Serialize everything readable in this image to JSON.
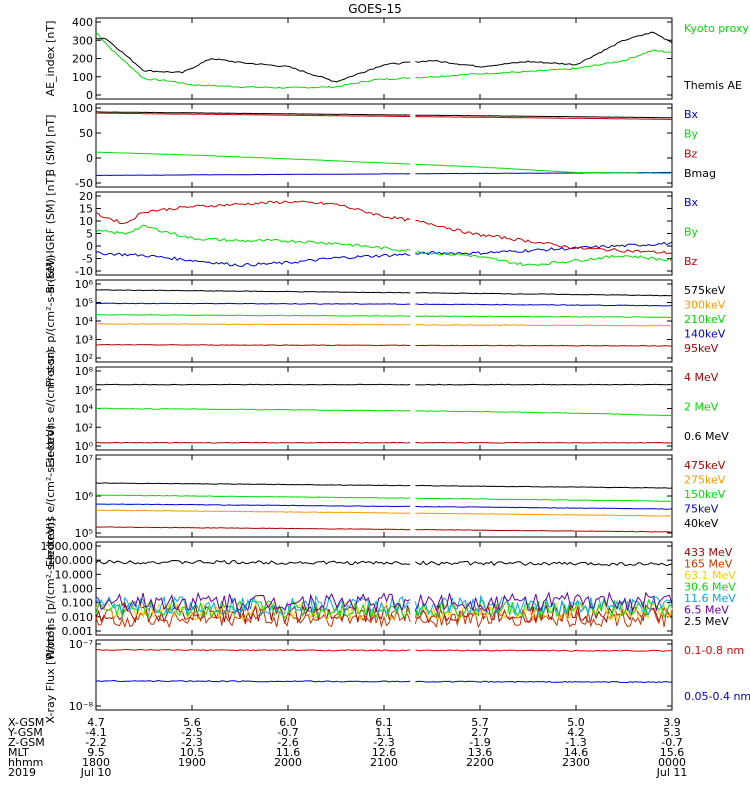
{
  "title": "GOES-15",
  "x_axis": {
    "hhmm_ticks": [
      "1800",
      "1900",
      "2000",
      "2100",
      "2200",
      "2300",
      "0000"
    ],
    "rows": [
      {
        "label": "X-GSM",
        "values": [
          "4.7",
          "5.6",
          "6.0",
          "6.1",
          "5.7",
          "5.0",
          "3.9"
        ]
      },
      {
        "label": "Y-GSM",
        "values": [
          "-4.1",
          "-2.5",
          "-0.7",
          "1.1",
          "2.7",
          "4.2",
          "5.3"
        ]
      },
      {
        "label": "Z-GSM",
        "values": [
          "-2.2",
          "-2.3",
          "-2.6",
          "-2.3",
          "-1.9",
          "-1.3",
          "-0.7"
        ]
      },
      {
        "label": "MLT",
        "values": [
          "9.5",
          "10.5",
          "11.6",
          "12.6",
          "13.6",
          "14.6",
          "15.6"
        ]
      },
      {
        "label": "hhmm",
        "values": [
          "1800",
          "1900",
          "2000",
          "2100",
          "2200",
          "2300",
          "0000"
        ]
      }
    ],
    "year_label": "2019",
    "start_date": "Jul 10",
    "end_date": "Jul 11"
  },
  "chart_data": [
    {
      "type": "line",
      "panel": "ae",
      "ylabel": "AE_index [nT]",
      "yticks": [
        "400",
        "300",
        "200",
        "100",
        "0"
      ],
      "ylim": [
        0,
        400
      ],
      "series": [
        {
          "name": "Kyoto proxy AE",
          "color": "#00dd00",
          "x": [
            0,
            0.15,
            0.5,
            0.75,
            1.0,
            1.5,
            2.0,
            2.5,
            2.9,
            3.5,
            4.0,
            4.5,
            5.0,
            5.5,
            5.8,
            6.0
          ],
          "y": [
            330,
            250,
            100,
            90,
            70,
            60,
            55,
            60,
            95,
            110,
            125,
            135,
            150,
            190,
            240,
            230
          ]
        },
        {
          "name": "Themis AE",
          "color": "#000000",
          "x": [
            0,
            0.1,
            0.5,
            0.9,
            1.2,
            1.5,
            2.0,
            2.5,
            3.0,
            3.5,
            4.0,
            4.5,
            5.0,
            5.5,
            5.8,
            6.0
          ],
          "y": [
            300,
            300,
            140,
            130,
            200,
            180,
            160,
            85,
            170,
            190,
            160,
            185,
            170,
            290,
            330,
            280
          ]
        }
      ]
    },
    {
      "type": "line",
      "panel": "bsm",
      "ylabel": "B (SM) [nT]",
      "yticks": [
        "100",
        "50",
        "0",
        "-50"
      ],
      "ylim": [
        -60,
        140
      ],
      "series": [
        {
          "name": "Bx",
          "color": "#0000cc",
          "x": [
            0,
            6
          ],
          "y": [
            -32,
            -25
          ]
        },
        {
          "name": "By",
          "color": "#00dd00",
          "x": [
            0,
            1,
            2,
            3,
            4,
            5,
            6
          ],
          "y": [
            24,
            17,
            8,
            -2,
            -12,
            -25,
            -27
          ]
        },
        {
          "name": "Bz",
          "color": "#cc0000",
          "x": [
            0,
            6
          ],
          "y": [
            118,
            103
          ]
        },
        {
          "name": "Bmag",
          "color": "#000000",
          "x": [
            0,
            6
          ],
          "y": [
            121,
            107
          ]
        }
      ]
    },
    {
      "type": "line",
      "panel": "bigrf",
      "ylabel": "B (SM)-IGRF (SM) [nT]",
      "yticks": [
        "20",
        "15",
        "10",
        "5",
        "0",
        "-5",
        "-10"
      ],
      "ylim": [
        -12,
        22
      ],
      "series": [
        {
          "name": "Bx",
          "color": "#0000cc",
          "x": [
            0,
            0.5,
            1,
            1.5,
            2,
            2.5,
            3,
            3.5,
            4,
            4.5,
            5,
            5.5,
            6
          ],
          "y": [
            -3,
            -4,
            -6,
            -8,
            -7,
            -5,
            -4,
            -3,
            -3,
            -2,
            -1,
            0,
            1
          ]
        },
        {
          "name": "By",
          "color": "#00dd00",
          "x": [
            0,
            0.3,
            0.5,
            1,
            1.5,
            2,
            2.5,
            3,
            3.5,
            3.9,
            4.5,
            5,
            5.5,
            6
          ],
          "y": [
            6,
            5,
            8,
            3,
            2,
            2,
            1,
            -1,
            -3,
            -4,
            -8,
            -6,
            -4,
            -6
          ]
        },
        {
          "name": "Bz",
          "color": "#cc0000",
          "x": [
            0,
            0.3,
            0.5,
            1,
            1.5,
            2,
            2.5,
            3,
            3.5,
            3.9,
            4.5,
            5,
            5.5,
            6
          ],
          "y": [
            13,
            9,
            14,
            16,
            17,
            18,
            17,
            12,
            9,
            5,
            2,
            -1,
            -2,
            -3
          ]
        }
      ]
    },
    {
      "type": "line",
      "panel": "protons",
      "yscale": "log",
      "ylabel": "Protons p/(cm²-s-sr-keV)",
      "yticks": [
        "10⁶",
        "10⁵",
        "10⁴",
        "10³",
        "10²"
      ],
      "ylim": [
        50,
        1000000
      ],
      "series": [
        {
          "name": "575keV",
          "color": "#000000",
          "x": [
            0,
            3,
            6
          ],
          "y": [
            300000,
            220000,
            150000
          ]
        },
        {
          "name": "300keV",
          "color": "#ff9900",
          "x": [
            0,
            6
          ],
          "y": [
            5000,
            4000
          ]
        },
        {
          "name": "210keV",
          "color": "#00dd00",
          "x": [
            0,
            6
          ],
          "y": [
            15000,
            11000
          ]
        },
        {
          "name": "140keV",
          "color": "#0000cc",
          "x": [
            0,
            3,
            6
          ],
          "y": [
            60000,
            55000,
            45000
          ]
        },
        {
          "name": "95keV",
          "color": "#aa0000",
          "x": [
            0,
            6
          ],
          "y": [
            400,
            350
          ]
        }
      ]
    },
    {
      "type": "line",
      "panel": "electrons_mev",
      "yscale": "log",
      "ylabel": "Electrons e/(cm²-s-sr)",
      "yticks": [
        "10⁸",
        "10⁶",
        "10⁴",
        "10²",
        "10⁰"
      ],
      "ylim": [
        1,
        100000000
      ],
      "series": [
        {
          "name": "4 MeV",
          "color": "#aa0000",
          "x": [
            0,
            6
          ],
          "y": [
            5,
            5
          ]
        },
        {
          "name": "2 MeV",
          "color": "#00dd00",
          "x": [
            0,
            4,
            6
          ],
          "y": [
            10000,
            5000,
            2000
          ]
        },
        {
          "name": "0.6 MeV",
          "color": "#000000",
          "x": [
            0,
            6
          ],
          "y": [
            2000000,
            2000000
          ]
        }
      ]
    },
    {
      "type": "line",
      "panel": "electrons_kev",
      "yscale": "log",
      "ylabel": "Electrons e/(cm²-s-sr-keV)",
      "yticks": [
        "10⁷",
        "10⁶",
        "10⁵"
      ],
      "ylim": [
        90000,
        10000000
      ],
      "series": [
        {
          "name": "475keV",
          "color": "#aa0000",
          "x": [
            0,
            6
          ],
          "y": [
            160000,
            120000
          ]
        },
        {
          "name": "275keV",
          "color": "#ff9900",
          "x": [
            0,
            6
          ],
          "y": [
            420000,
            300000
          ]
        },
        {
          "name": "150keV",
          "color": "#00dd00",
          "x": [
            0,
            6
          ],
          "y": [
            1000000,
            700000
          ]
        },
        {
          "name": "75keV",
          "color": "#0000cc",
          "x": [
            0,
            6
          ],
          "y": [
            600000,
            450000
          ]
        },
        {
          "name": "40keV",
          "color": "#000000",
          "x": [
            0,
            6
          ],
          "y": [
            2000000,
            1500000
          ]
        }
      ]
    },
    {
      "type": "line",
      "panel": "protons_mev",
      "yscale": "log",
      "ylabel": "Protons [p/(cm²-s-sr-keV)]",
      "yticks": [
        "1000.000",
        "100.000",
        "10.000",
        "1.000",
        "0.100",
        "0.010",
        "0.001"
      ],
      "ylim": [
        0.0008,
        1000
      ],
      "series": [
        {
          "name": "433 MeV",
          "color": "#aa0000",
          "x": [
            0,
            6
          ],
          "y": [
            0.02,
            0.02
          ]
        },
        {
          "name": "165 MeV",
          "color": "#cc3300",
          "x": [
            0,
            6
          ],
          "y": [
            0.01,
            0.01
          ]
        },
        {
          "name": "63.1 MeV",
          "color": "#ffcc00",
          "x": [
            0,
            6
          ],
          "y": [
            0.03,
            0.03
          ]
        },
        {
          "name": "30.6 MeV",
          "color": "#00dd00",
          "x": [
            0,
            6
          ],
          "y": [
            0.04,
            0.04
          ]
        },
        {
          "name": "11.6 MeV",
          "color": "#00aaee",
          "x": [
            0,
            6
          ],
          "y": [
            0.07,
            0.07
          ]
        },
        {
          "name": "6.5 MeV",
          "color": "#6600aa",
          "x": [
            0,
            6
          ],
          "y": [
            0.12,
            0.12
          ]
        },
        {
          "name": "2.5 MeV",
          "color": "#000000",
          "x": [
            0,
            6
          ],
          "y": [
            50,
            35
          ]
        }
      ]
    },
    {
      "type": "line",
      "panel": "xray",
      "yscale": "log",
      "ylabel": "X-ray Flux [W/m²]",
      "yticks": [
        "10⁻⁷",
        "10⁻⁸"
      ],
      "ylim": [
        1e-08,
        1e-07
      ],
      "series": [
        {
          "name": "0.1-0.8 nm",
          "color": "#dd0000",
          "x": [
            0,
            6
          ],
          "y": [
            7.2e-08,
            7e-08
          ]
        },
        {
          "name": "0.05-0.4 nm",
          "color": "#0000cc",
          "x": [
            0,
            6
          ],
          "y": [
            2.6e-08,
            2.5e-08
          ]
        }
      ]
    }
  ]
}
